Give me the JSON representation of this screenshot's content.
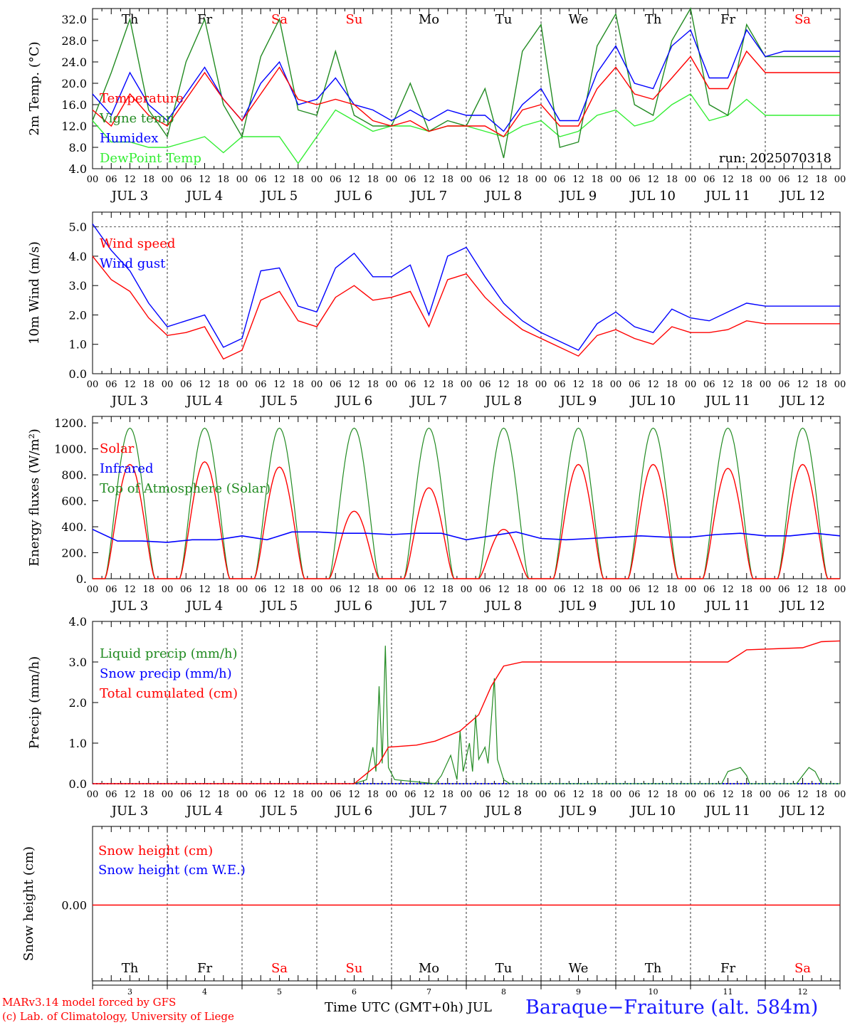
{
  "run_label": "run: 2025070318",
  "day_names": [
    "Th",
    "Fr",
    "Sa",
    "Su",
    "Mo",
    "Tu",
    "We",
    "Th",
    "Fr",
    "Sa"
  ],
  "weekend_days": [
    2,
    3,
    9
  ],
  "day_numbers": [
    "3",
    "4",
    "5",
    "6",
    "7",
    "8",
    "9",
    "10",
    "11",
    "12"
  ],
  "date_labels": [
    "JUL  3",
    "JUL  4",
    "JUL  5",
    "JUL  6",
    "JUL  7",
    "JUL  8",
    "JUL  9",
    "JUL 10",
    "JUL 11",
    "JUL 12"
  ],
  "hour_ticks": [
    "00",
    "06",
    "12",
    "18"
  ],
  "footer": {
    "credit_line1": "MARv3.14 model forced by GFS",
    "credit_line2": "(c) Lab. of Climatology, University of Liege",
    "x_title": "Time UTC (GMT+0h) JUL",
    "station": "Baraque−Fraiture (alt. 584m)"
  },
  "colors": {
    "red": "#ff0000",
    "green": "#228b22",
    "blue": "#0000ff",
    "lightgreen": "#33ee33",
    "axis": "#000000",
    "weekend": "#ff0000"
  },
  "chart_data": [
    {
      "type": "line",
      "ylabel": "2m Temp. (°C)",
      "ylim": [
        4,
        34
      ],
      "yticks": [
        "4.0",
        "8.0",
        "12.0",
        "16.0",
        "20.0",
        "24.0",
        "28.0",
        "32.0"
      ],
      "x_hours": [
        0,
        6,
        12,
        18,
        24,
        30,
        36,
        42,
        48,
        54,
        60,
        66,
        72,
        78,
        84,
        90,
        96,
        102,
        108,
        114,
        120,
        126,
        132,
        138,
        144,
        150,
        156,
        162,
        168,
        174,
        180,
        186,
        192,
        198,
        204,
        210,
        216,
        222,
        228,
        234,
        240
      ],
      "series": [
        {
          "name": "Temperature",
          "color": "#ff0000",
          "values": [
            15,
            12,
            18,
            14,
            12,
            17,
            22,
            17,
            13,
            18,
            23,
            17,
            16,
            17,
            16,
            13,
            12,
            13,
            11,
            12,
            12,
            12,
            10,
            15,
            16,
            12,
            12,
            19,
            23,
            18,
            17,
            21,
            25,
            19,
            19,
            26,
            22,
            22,
            22,
            22,
            22
          ]
        },
        {
          "name": "Vigne temp",
          "color": "#228b22",
          "values": [
            13,
            22,
            32,
            15,
            10,
            24,
            32,
            16,
            10,
            25,
            32,
            15,
            14,
            26,
            14,
            12,
            12,
            20,
            11,
            13,
            12,
            19,
            6,
            26,
            31,
            8,
            9,
            27,
            33,
            16,
            14,
            28,
            35,
            16,
            14,
            31,
            25,
            25,
            25,
            25,
            25
          ]
        },
        {
          "name": "Humidex",
          "color": "#0000ff",
          "values": [
            18,
            14,
            22,
            16,
            13,
            18,
            23,
            17,
            13,
            20,
            24,
            16,
            17,
            21,
            16,
            15,
            13,
            15,
            13,
            15,
            14,
            14,
            11,
            16,
            19,
            13,
            13,
            22,
            27,
            20,
            19,
            27,
            30,
            21,
            21,
            30,
            25,
            26,
            26,
            26,
            26
          ]
        },
        {
          "name": "DewPoint Temp",
          "color": "#33ee33",
          "values": [
            13,
            9,
            9,
            8,
            8,
            9,
            10,
            7,
            10,
            10,
            10,
            5,
            10,
            15,
            13,
            11,
            12,
            12,
            11,
            12,
            12,
            11,
            10,
            12,
            13,
            10,
            11,
            14,
            15,
            12,
            13,
            16,
            18,
            13,
            14,
            17,
            14,
            14,
            14,
            14,
            14
          ]
        }
      ]
    },
    {
      "type": "line",
      "ylabel": "10m Wind (m/s)",
      "ylim": [
        0,
        5.5
      ],
      "yticks": [
        "0.0",
        "1.0",
        "2.0",
        "3.0",
        "4.0",
        "5.0"
      ],
      "x_hours": [
        0,
        6,
        12,
        18,
        24,
        30,
        36,
        42,
        48,
        54,
        60,
        66,
        72,
        78,
        84,
        90,
        96,
        102,
        108,
        114,
        120,
        126,
        132,
        138,
        144,
        150,
        156,
        162,
        168,
        174,
        180,
        186,
        192,
        198,
        204,
        210,
        216,
        222,
        228,
        234,
        240
      ],
      "series": [
        {
          "name": "Wind speed",
          "color": "#ff0000",
          "values": [
            4.0,
            3.2,
            2.8,
            1.9,
            1.3,
            1.4,
            1.6,
            0.5,
            0.8,
            2.5,
            2.8,
            1.8,
            1.6,
            2.6,
            3.0,
            2.5,
            2.6,
            2.8,
            1.6,
            3.2,
            3.4,
            2.6,
            2.0,
            1.5,
            1.2,
            0.9,
            0.6,
            1.3,
            1.5,
            1.2,
            1.0,
            1.6,
            1.4,
            1.4,
            1.5,
            1.8,
            1.7,
            1.7,
            1.7,
            1.7,
            1.7
          ]
        },
        {
          "name": "Wind gust",
          "color": "#0000ff",
          "values": [
            5.1,
            4.2,
            3.5,
            2.4,
            1.6,
            1.8,
            2.0,
            0.9,
            1.2,
            3.5,
            3.6,
            2.3,
            2.1,
            3.6,
            4.1,
            3.3,
            3.3,
            3.7,
            2.0,
            4.0,
            4.3,
            3.3,
            2.4,
            1.8,
            1.4,
            1.1,
            0.8,
            1.7,
            2.1,
            1.6,
            1.4,
            2.2,
            1.9,
            1.8,
            2.1,
            2.4,
            2.3,
            2.3,
            2.3,
            2.3,
            2.3
          ]
        }
      ]
    },
    {
      "type": "line",
      "ylabel": "Energy fluxes (W/m²)",
      "ylim": [
        0,
        1250
      ],
      "yticks": [
        "0.",
        "200.",
        "400.",
        "600.",
        "800.",
        "1000.",
        "1200."
      ],
      "solar_peaks": [
        880,
        900,
        860,
        520,
        700,
        380,
        880,
        880,
        850,
        880
      ],
      "toa_peak": 1160,
      "infrared": [
        380,
        290,
        290,
        280,
        300,
        300,
        330,
        300,
        360,
        360,
        350,
        350,
        340,
        350,
        350,
        300,
        330,
        360,
        310,
        300,
        310,
        320,
        330,
        320,
        320,
        340,
        350,
        330,
        330,
        350,
        330
      ],
      "series": [
        {
          "name": "Solar",
          "color": "#ff0000"
        },
        {
          "name": "Infrared",
          "color": "#0000ff"
        },
        {
          "name": "Top of Atmosphere (Solar)",
          "color": "#228b22"
        }
      ]
    },
    {
      "type": "line",
      "ylabel": "Precip (mm/h)",
      "ylim": [
        0,
        4.0
      ],
      "yticks": [
        "0.0",
        "1.0",
        "2.0",
        "3.0",
        "4.0"
      ],
      "liquid_points": [
        [
          0,
          0
        ],
        [
          84,
          0
        ],
        [
          88,
          0.1
        ],
        [
          90,
          0.9
        ],
        [
          91,
          0.3
        ],
        [
          92,
          2.4
        ],
        [
          93,
          0.5
        ],
        [
          94,
          3.4
        ],
        [
          95,
          0.4
        ],
        [
          97,
          0.1
        ],
        [
          110,
          0
        ],
        [
          112,
          0.2
        ],
        [
          115,
          0.7
        ],
        [
          117,
          0.1
        ],
        [
          118,
          1.3
        ],
        [
          119,
          0.3
        ],
        [
          121,
          1.0
        ],
        [
          122,
          0.3
        ],
        [
          123,
          1.7
        ],
        [
          124,
          0.6
        ],
        [
          126,
          0.9
        ],
        [
          127,
          0.5
        ],
        [
          129,
          2.6
        ],
        [
          130,
          0.6
        ],
        [
          132,
          0.1
        ],
        [
          134,
          0
        ],
        [
          202,
          0
        ],
        [
          204,
          0.3
        ],
        [
          208,
          0.4
        ],
        [
          210,
          0.2
        ],
        [
          211,
          0
        ],
        [
          226,
          0
        ],
        [
          228,
          0.2
        ],
        [
          230,
          0.4
        ],
        [
          232,
          0.3
        ],
        [
          234,
          0
        ],
        [
          240,
          0
        ]
      ],
      "cumulated_points": [
        [
          0,
          0
        ],
        [
          84,
          0
        ],
        [
          92,
          0.5
        ],
        [
          95,
          0.9
        ],
        [
          104,
          0.95
        ],
        [
          110,
          1.05
        ],
        [
          118,
          1.3
        ],
        [
          124,
          1.7
        ],
        [
          128,
          2.4
        ],
        [
          132,
          2.9
        ],
        [
          138,
          3.0
        ],
        [
          204,
          3.0
        ],
        [
          210,
          3.3
        ],
        [
          228,
          3.35
        ],
        [
          234,
          3.5
        ],
        [
          240,
          3.52
        ]
      ],
      "series": [
        {
          "name": "Liquid precip (mm/h)",
          "color": "#228b22"
        },
        {
          "name": "Snow precip (mm/h)",
          "color": "#0000ff"
        },
        {
          "name": "Total cumulated (cm)",
          "color": "#ff0000"
        }
      ]
    },
    {
      "type": "line",
      "ylabel": "Snow height (cm)",
      "yticks": [
        "0.00"
      ],
      "values": [
        0.0,
        0.0
      ],
      "series": [
        {
          "name": "Snow height (cm)",
          "color": "#ff0000"
        },
        {
          "name": "Snow height (cm W.E.)",
          "color": "#0000ff"
        }
      ]
    }
  ]
}
